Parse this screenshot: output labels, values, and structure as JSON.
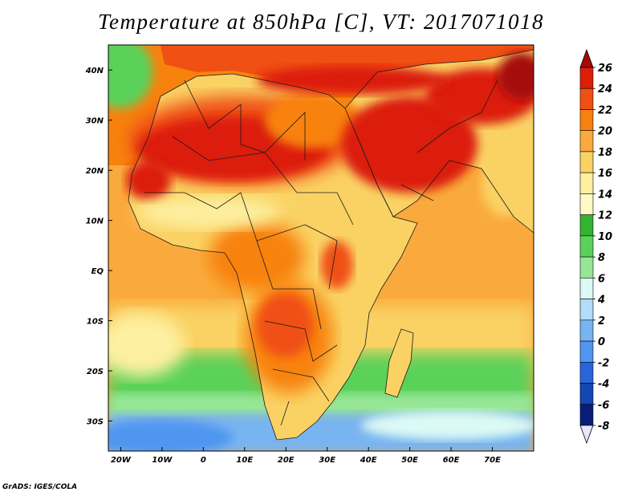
{
  "title": "Temperature at 850hPa [C], VT: 2017071018",
  "footer": "GrADS: IGES/COLA",
  "map": {
    "lon_range": [
      -23,
      80
    ],
    "lat_range": [
      -36,
      45
    ],
    "lon_ticks": [
      {
        "value": -20,
        "label": "20W"
      },
      {
        "value": -10,
        "label": "10W"
      },
      {
        "value": 0,
        "label": "0"
      },
      {
        "value": 10,
        "label": "10E"
      },
      {
        "value": 20,
        "label": "20E"
      },
      {
        "value": 30,
        "label": "30E"
      },
      {
        "value": 40,
        "label": "40E"
      },
      {
        "value": 50,
        "label": "50E"
      },
      {
        "value": 60,
        "label": "60E"
      },
      {
        "value": 70,
        "label": "70E"
      }
    ],
    "lat_ticks": [
      {
        "value": 40,
        "label": "40N"
      },
      {
        "value": 30,
        "label": "30N"
      },
      {
        "value": 20,
        "label": "20N"
      },
      {
        "value": 10,
        "label": "10N"
      },
      {
        "value": 0,
        "label": "EQ"
      },
      {
        "value": -10,
        "label": "10S"
      },
      {
        "value": -20,
        "label": "20S"
      },
      {
        "value": -30,
        "label": "30S"
      }
    ]
  },
  "colorbar": {
    "levels": [
      "26",
      "24",
      "22",
      "20",
      "18",
      "16",
      "14",
      "12",
      "10",
      "8",
      "6",
      "4",
      "2",
      "0",
      "-2",
      "-4",
      "-6",
      "-8"
    ],
    "colors": [
      "#a50a0a",
      "#dc1e0a",
      "#f05014",
      "#f8820e",
      "#faaa3c",
      "#fad264",
      "#fdf0a0",
      "#fff9c8",
      "#32b432",
      "#5ad25a",
      "#96e696",
      "#dcfaf5",
      "#b4dcfa",
      "#78b4f0",
      "#5096f0",
      "#2864dc",
      "#1446b4",
      "#0a1e78",
      "#e6e6ff"
    ]
  },
  "regions": {
    "land_fill": "#fce38a",
    "sahara_fill": "#dc1e0a",
    "arabia_fill": "#dc1e0a",
    "ocean_cold": "#5096f0",
    "ocean_cool": "#b4dcfa",
    "ocean_mid": "#5ad25a",
    "ocean_warm": "#faaa3c"
  }
}
